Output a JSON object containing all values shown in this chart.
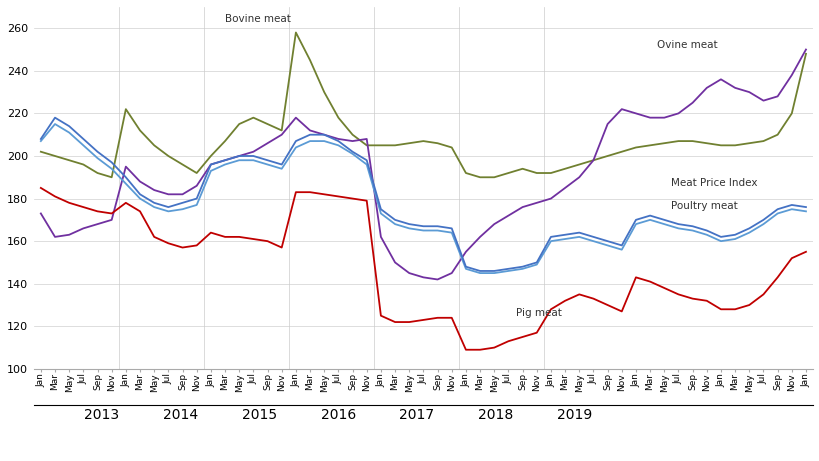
{
  "ylim": [
    100,
    270
  ],
  "yticks": [
    100,
    120,
    140,
    160,
    180,
    200,
    220,
    240,
    260
  ],
  "background_color": "#ffffff",
  "years": [
    2013,
    2014,
    2015,
    2016,
    2017,
    2018,
    2019
  ],
  "month_labels": [
    "Jan",
    "Mar",
    "May",
    "Jul",
    "Sep",
    "Nov"
  ],
  "series": {
    "Bovine meat": {
      "color": "#708030",
      "data": [
        202,
        200,
        198,
        196,
        192,
        190,
        222,
        212,
        205,
        200,
        196,
        192,
        200,
        207,
        215,
        218,
        215,
        212,
        258,
        245,
        230,
        218,
        210,
        205,
        205,
        205,
        206,
        207,
        206,
        204,
        192,
        190,
        190,
        192,
        194,
        192,
        192,
        194,
        196,
        198,
        200,
        202,
        204,
        205,
        206,
        207,
        207,
        206,
        205,
        205,
        206,
        207,
        210,
        220,
        248
      ]
    },
    "Ovine meat": {
      "color": "#7030a0",
      "data": [
        173,
        162,
        163,
        166,
        168,
        170,
        195,
        188,
        184,
        182,
        182,
        186,
        196,
        198,
        200,
        202,
        206,
        210,
        218,
        212,
        210,
        208,
        207,
        208,
        162,
        150,
        145,
        143,
        142,
        145,
        155,
        162,
        168,
        172,
        176,
        178,
        180,
        185,
        190,
        198,
        215,
        222,
        220,
        218,
        218,
        220,
        225,
        232,
        236,
        232,
        230,
        226,
        228,
        238,
        250
      ]
    },
    "Meat Price Index": {
      "color": "#4472c4",
      "data": [
        208,
        218,
        214,
        208,
        202,
        197,
        190,
        182,
        178,
        176,
        178,
        180,
        196,
        198,
        200,
        200,
        198,
        196,
        207,
        210,
        210,
        207,
        202,
        198,
        175,
        170,
        168,
        167,
        167,
        166,
        148,
        146,
        146,
        147,
        148,
        150,
        162,
        163,
        164,
        162,
        160,
        158,
        170,
        172,
        170,
        168,
        167,
        165,
        162,
        163,
        166,
        170,
        175,
        177,
        176
      ]
    },
    "Poultry meat": {
      "color": "#5b9bd5",
      "data": [
        207,
        215,
        211,
        205,
        199,
        194,
        187,
        180,
        176,
        174,
        175,
        177,
        193,
        196,
        198,
        198,
        196,
        194,
        204,
        207,
        207,
        205,
        201,
        196,
        173,
        168,
        166,
        165,
        165,
        164,
        147,
        145,
        145,
        146,
        147,
        149,
        160,
        161,
        162,
        160,
        158,
        156,
        168,
        170,
        168,
        166,
        165,
        163,
        160,
        161,
        164,
        168,
        173,
        175,
        174
      ]
    },
    "Pig meat": {
      "color": "#c00000",
      "data": [
        185,
        181,
        178,
        176,
        174,
        173,
        178,
        174,
        162,
        159,
        157,
        158,
        164,
        162,
        162,
        161,
        160,
        157,
        183,
        183,
        182,
        181,
        180,
        179,
        125,
        122,
        122,
        123,
        124,
        124,
        109,
        109,
        110,
        113,
        115,
        117,
        128,
        132,
        135,
        133,
        130,
        127,
        143,
        141,
        138,
        135,
        133,
        132,
        128,
        128,
        130,
        135,
        143,
        152,
        155
      ]
    }
  },
  "annotations": {
    "Bovine meat": {
      "xi": 12,
      "y": 260
    },
    "Ovine meat": {
      "xi": 43,
      "y": 248
    },
    "Meat Price Index": {
      "xi": 44,
      "y": 183
    },
    "Poultry meat": {
      "xi": 44,
      "y": 172
    },
    "Pig meat": {
      "xi": 33,
      "y": 122
    }
  }
}
